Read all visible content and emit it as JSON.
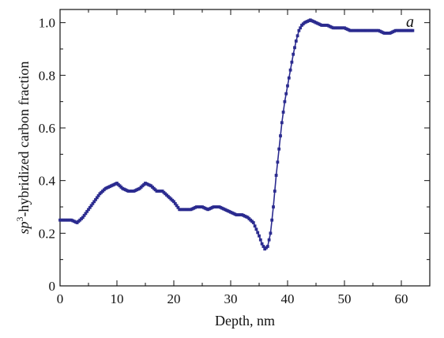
{
  "chart_data": {
    "type": "line",
    "xlabel": "Depth, nm",
    "ylabel_prefix": "sp",
    "ylabel_superscript": "3",
    "ylabel_suffix": "-hybridized carbon fraction",
    "panel_label": "a",
    "xlim": [
      0,
      65
    ],
    "ylim": [
      0,
      1.05
    ],
    "x_ticks": [
      "0",
      "10",
      "20",
      "30",
      "40",
      "50",
      "60"
    ],
    "y_ticks": [
      "0",
      "0.2",
      "0.4",
      "0.6",
      "0.8",
      "1.0"
    ],
    "grid": false,
    "marker": "square",
    "series": [
      {
        "color": "#2b2b8f",
        "x": [
          0,
          1,
          2,
          3,
          4,
          5,
          6,
          7,
          8,
          9,
          10,
          11,
          12,
          13,
          14,
          15,
          16,
          17,
          18,
          19,
          20,
          21,
          22,
          23,
          24,
          25,
          26,
          27,
          28,
          29,
          30,
          31,
          32,
          33,
          34,
          35,
          35.5,
          36,
          36.5,
          37,
          37.5,
          38,
          38.5,
          39,
          39.5,
          40,
          40.5,
          41,
          41.5,
          42,
          42.5,
          43,
          44,
          45,
          46,
          47,
          48,
          49,
          50,
          51,
          52,
          53,
          54,
          55,
          56,
          57,
          58,
          59,
          60,
          61,
          62
        ],
        "y": [
          0.25,
          0.25,
          0.25,
          0.24,
          0.26,
          0.29,
          0.32,
          0.35,
          0.37,
          0.38,
          0.39,
          0.37,
          0.36,
          0.36,
          0.37,
          0.39,
          0.38,
          0.36,
          0.36,
          0.34,
          0.32,
          0.29,
          0.29,
          0.29,
          0.3,
          0.3,
          0.29,
          0.3,
          0.3,
          0.29,
          0.28,
          0.27,
          0.27,
          0.26,
          0.24,
          0.19,
          0.16,
          0.14,
          0.15,
          0.2,
          0.3,
          0.42,
          0.52,
          0.62,
          0.7,
          0.76,
          0.82,
          0.88,
          0.93,
          0.97,
          0.99,
          1.0,
          1.01,
          1.0,
          0.99,
          0.99,
          0.98,
          0.98,
          0.98,
          0.97,
          0.97,
          0.97,
          0.97,
          0.97,
          0.97,
          0.96,
          0.96,
          0.97,
          0.97,
          0.97,
          0.97
        ]
      }
    ]
  }
}
